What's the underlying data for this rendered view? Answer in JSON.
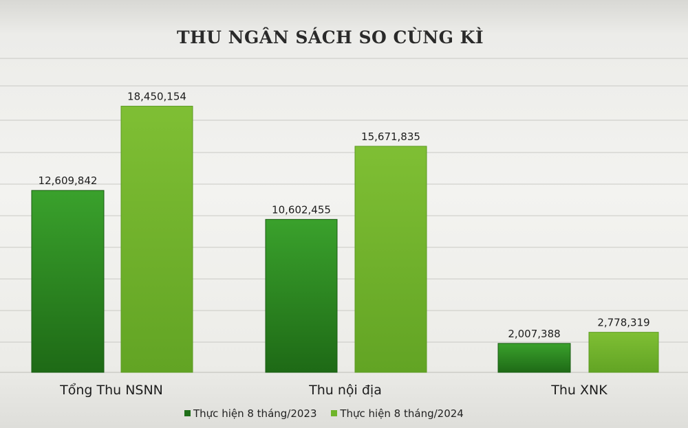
{
  "chart_data": {
    "type": "bar",
    "title": "THU NGÂN SÁCH SO CÙNG KÌ",
    "categories": [
      "Tổng Thu NSNN",
      "Thu nội địa",
      "Thu XNK"
    ],
    "series": [
      {
        "name": "Thực hiện 8 tháng/2023",
        "color": "#2e8b22",
        "values": [
          12609842,
          10602455,
          2007388
        ],
        "labels": [
          "12,609,842",
          "10,602,455",
          "2,007,388"
        ]
      },
      {
        "name": "Thực hiện 8 tháng/2024",
        "color": "#72b32a",
        "values": [
          18450154,
          15671835,
          2778319
        ],
        "labels": [
          "18,450,154",
          "15,671,835",
          "2,778,319"
        ]
      }
    ],
    "ylim": [
      0,
      22000000
    ],
    "grid": true,
    "legend_position": "bottom"
  }
}
